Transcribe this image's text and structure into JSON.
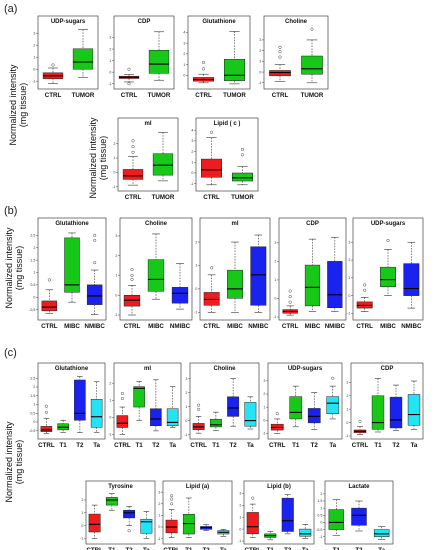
{
  "panel_labels": [
    "(a)",
    "(b)",
    "(c)"
  ],
  "y_title_line1": "Normalized intensity",
  "y_title_line2": "(mg tissue)",
  "colors": {
    "CTRL": "#ee1c1c",
    "TUMOR": "#18c818",
    "MIBC": "#18c818",
    "NMIBC": "#1a22f0",
    "T1": "#18c818",
    "T2": "#1a22f0",
    "Ta": "#22e4f4"
  },
  "chart_data": [
    {
      "type": "box",
      "panel": "a",
      "title": "UDP-sugars",
      "categories": [
        "CTRL",
        "TUMOR"
      ],
      "ylim": [
        -1.4,
        3.6
      ],
      "yticks": [
        -1,
        0,
        1,
        2,
        3
      ],
      "boxes": [
        {
          "min": -1.2,
          "q1": -0.8,
          "median": -0.55,
          "q3": -0.3,
          "max": 0.1,
          "outliers": [
            0.35
          ]
        },
        {
          "min": -0.7,
          "q1": 0.0,
          "median": 0.6,
          "q3": 1.7,
          "max": 3.3,
          "outliers": []
        }
      ]
    },
    {
      "type": "box",
      "panel": "a",
      "title": "CDP",
      "categories": [
        "CTRL",
        "TUMOR"
      ],
      "ylim": [
        -1.2,
        4.0
      ],
      "yticks": [
        -1,
        0,
        1,
        2,
        3
      ],
      "boxes": [
        {
          "min": -0.85,
          "q1": -0.55,
          "median": -0.45,
          "q3": -0.35,
          "max": -0.2,
          "outliers": [
            0.25,
            -1.0
          ]
        },
        {
          "min": -0.7,
          "q1": -0.1,
          "median": 0.7,
          "q3": 1.9,
          "max": 3.5,
          "outliers": []
        }
      ]
    },
    {
      "type": "box",
      "panel": "a",
      "title": "Glutathione",
      "categories": [
        "CTRL",
        "TUMOR"
      ],
      "ylim": [
        -1.0,
        4.6
      ],
      "yticks": [
        0,
        1,
        2,
        3,
        4
      ],
      "boxes": [
        {
          "min": -0.7,
          "q1": -0.55,
          "median": -0.4,
          "q3": -0.2,
          "max": 0.1,
          "outliers": [
            0.6,
            1.2
          ]
        },
        {
          "min": -0.8,
          "q1": -0.5,
          "median": 0.0,
          "q3": 1.5,
          "max": 4.1,
          "outliers": []
        }
      ]
    },
    {
      "type": "box",
      "panel": "a",
      "title": "Choline",
      "categories": [
        "CTRL",
        "TUMOR"
      ],
      "ylim": [
        -1.3,
        4.3
      ],
      "yticks": [
        -1,
        0,
        1,
        2,
        3
      ],
      "boxes": [
        {
          "min": -0.9,
          "q1": -0.35,
          "median": -0.05,
          "q3": 0.15,
          "max": 0.7,
          "outliers": [
            1.4,
            1.9,
            2.3
          ]
        },
        {
          "min": -1.0,
          "q1": -0.2,
          "median": 0.3,
          "q3": 1.5,
          "max": 3.0,
          "outliers": [
            4.0
          ]
        }
      ]
    },
    {
      "type": "box",
      "panel": "a",
      "title": "mI",
      "categories": [
        "CTRL",
        "TUMOR"
      ],
      "ylim": [
        -1.1,
        3.1
      ],
      "yticks": [
        -1,
        0,
        1,
        2
      ],
      "boxes": [
        {
          "min": -0.9,
          "q1": -0.5,
          "median": -0.25,
          "q3": 0.2,
          "max": 1.1,
          "outliers": [
            1.4,
            1.8,
            2.2
          ]
        },
        {
          "min": -0.6,
          "q1": -0.2,
          "median": 0.5,
          "q3": 1.3,
          "max": 2.8,
          "outliers": []
        }
      ]
    },
    {
      "type": "box",
      "panel": "a",
      "title": "Lipid ( c )",
      "categories": [
        "CTRL",
        "TUMOR"
      ],
      "ylim": [
        -1.4,
        4.2
      ],
      "yticks": [
        -1,
        0,
        1,
        2,
        3,
        4
      ],
      "boxes": [
        {
          "min": -1.1,
          "q1": -0.4,
          "median": 0.3,
          "q3": 1.3,
          "max": 3.3,
          "outliers": [
            3.8
          ]
        },
        {
          "min": -1.1,
          "q1": -0.75,
          "median": -0.45,
          "q3": 0.0,
          "max": 0.6,
          "outliers": [
            1.7,
            2.2
          ]
        }
      ]
    },
    {
      "type": "box",
      "panel": "b",
      "title": "Glutathione",
      "categories": [
        "CTRL",
        "MIBC",
        "NMIBC"
      ],
      "ylim": [
        -0.8,
        2.8
      ],
      "yticks": [
        -0.5,
        0.0,
        0.5,
        1.0,
        1.5,
        2.0,
        2.5
      ],
      "boxes": [
        {
          "min": -0.65,
          "q1": -0.55,
          "median": -0.4,
          "q3": -0.15,
          "max": 0.3,
          "outliers": [
            0.7
          ]
        },
        {
          "min": -0.2,
          "q1": 0.2,
          "median": 0.5,
          "q3": 2.4,
          "max": 2.6,
          "outliers": []
        },
        {
          "min": -0.7,
          "q1": -0.3,
          "median": 0.05,
          "q3": 0.5,
          "max": 1.1,
          "outliers": [
            2.3,
            2.5,
            1.4
          ]
        }
      ]
    },
    {
      "type": "box",
      "panel": "b",
      "title": "Choline",
      "categories": [
        "CTRL",
        "MIBC",
        "NMIBC"
      ],
      "ylim": [
        -1.1,
        3.4
      ],
      "yticks": [
        -1,
        0,
        1,
        2,
        3
      ],
      "boxes": [
        {
          "min": -1.0,
          "q1": -0.55,
          "median": -0.25,
          "q3": 0.0,
          "max": 0.5,
          "outliers": [
            1.3,
            1.0,
            0.8
          ]
        },
        {
          "min": -0.2,
          "q1": 0.2,
          "median": 0.8,
          "q3": 1.8,
          "max": 3.1,
          "outliers": []
        },
        {
          "min": -0.7,
          "q1": -0.4,
          "median": 0.1,
          "q3": 0.4,
          "max": 1.6,
          "outliers": []
        }
      ]
    },
    {
      "type": "box",
      "panel": "b",
      "title": "mI",
      "categories": [
        "CTRL",
        "MIBC",
        "NMIBC"
      ],
      "ylim": [
        -1.2,
        2.6
      ],
      "yticks": [
        -1,
        0,
        1,
        2
      ],
      "boxes": [
        {
          "min": -1.0,
          "q1": -0.7,
          "median": -0.45,
          "q3": -0.15,
          "max": 0.6,
          "outliers": [
            0.9
          ]
        },
        {
          "min": -1.0,
          "q1": -0.4,
          "median": 0.0,
          "q3": 0.8,
          "max": 2.0,
          "outliers": []
        },
        {
          "min": -1.0,
          "q1": -0.7,
          "median": 0.6,
          "q3": 1.8,
          "max": 2.3,
          "outliers": []
        }
      ]
    },
    {
      "type": "box",
      "panel": "b",
      "title": "CDP",
      "categories": [
        "CTRL",
        "MIBC",
        "NMIBC"
      ],
      "ylim": [
        -1.0,
        3.8
      ],
      "yticks": [
        -1,
        0,
        1,
        2,
        3
      ],
      "boxes": [
        {
          "min": -0.9,
          "q1": -0.8,
          "median": -0.7,
          "q3": -0.6,
          "max": -0.4,
          "outliers": [
            0.1,
            0.4,
            -0.2
          ]
        },
        {
          "min": -0.7,
          "q1": -0.4,
          "median": 0.6,
          "q3": 1.8,
          "max": 3.2,
          "outliers": []
        },
        {
          "min": -0.7,
          "q1": -0.5,
          "median": 0.2,
          "q3": 2.0,
          "max": 3.3,
          "outliers": []
        }
      ]
    },
    {
      "type": "box",
      "panel": "b",
      "title": "UDP-sugars",
      "categories": [
        "CTRL",
        "MIBC",
        "NMIBC"
      ],
      "ylim": [
        -1.2,
        3.8
      ],
      "yticks": [
        -1,
        0,
        1,
        2,
        3
      ],
      "boxes": [
        {
          "min": -0.9,
          "q1": -0.7,
          "median": -0.55,
          "q3": -0.35,
          "max": -0.1,
          "outliers": [
            0.3,
            0.6
          ]
        },
        {
          "min": 0.0,
          "q1": 0.5,
          "median": 0.9,
          "q3": 1.6,
          "max": 2.6,
          "outliers": [
            3.1
          ]
        },
        {
          "min": -0.7,
          "q1": 0.0,
          "median": 0.4,
          "q3": 1.8,
          "max": 3.0,
          "outliers": []
        }
      ]
    },
    {
      "type": "box",
      "panel": "c",
      "title": "Glutathione",
      "categories": [
        "CTRL",
        "T1",
        "T2",
        "Ta"
      ],
      "ylim": [
        -0.8,
        2.8
      ],
      "yticks": [
        -0.5,
        0.0,
        0.5,
        1.0,
        1.5,
        2.0,
        2.5
      ],
      "boxes": [
        {
          "min": -0.65,
          "q1": -0.55,
          "median": -0.45,
          "q3": -0.25,
          "max": 0.2,
          "outliers": [
            0.55,
            0.9
          ]
        },
        {
          "min": -0.6,
          "q1": -0.45,
          "median": -0.3,
          "q3": -0.1,
          "max": 0.1,
          "outliers": []
        },
        {
          "min": -0.6,
          "q1": 0.1,
          "median": 0.5,
          "q3": 2.4,
          "max": 2.6,
          "outliers": []
        },
        {
          "min": -0.6,
          "q1": -0.3,
          "median": 0.3,
          "q3": 1.3,
          "max": 2.3,
          "outliers": []
        }
      ]
    },
    {
      "type": "box",
      "panel": "c",
      "title": "mI",
      "categories": [
        "CTRL",
        "T1",
        "T2",
        "Ta"
      ],
      "ylim": [
        -1.1,
        2.6
      ],
      "yticks": [
        -1,
        0,
        1,
        2
      ],
      "boxes": [
        {
          "min": -1.0,
          "q1": -0.6,
          "median": -0.35,
          "q3": 0.1,
          "max": 0.6,
          "outliers": [
            1.1,
            1.4
          ]
        },
        {
          "min": -0.2,
          "q1": 0.6,
          "median": 1.7,
          "q3": 1.8,
          "max": 2.1,
          "outliers": []
        },
        {
          "min": -0.8,
          "q1": -0.5,
          "median": -0.1,
          "q3": 0.5,
          "max": 2.2,
          "outliers": []
        },
        {
          "min": -0.6,
          "q1": -0.5,
          "median": -0.3,
          "q3": 0.5,
          "max": 1.8,
          "outliers": []
        }
      ]
    },
    {
      "type": "box",
      "panel": "c",
      "title": "Choline",
      "categories": [
        "CTRL",
        "T1",
        "T2",
        "Ta"
      ],
      "ylim": [
        -1.1,
        3.4
      ],
      "yticks": [
        -1,
        0,
        1,
        2,
        3
      ],
      "boxes": [
        {
          "min": -0.9,
          "q1": -0.65,
          "median": -0.45,
          "q3": -0.2,
          "max": 0.3,
          "outliers": [
            0.8,
            1.1
          ]
        },
        {
          "min": -0.7,
          "q1": -0.45,
          "median": -0.3,
          "q3": 0.1,
          "max": 0.6,
          "outliers": []
        },
        {
          "min": -0.4,
          "q1": 0.3,
          "median": 0.9,
          "q3": 1.7,
          "max": 3.0,
          "outliers": []
        },
        {
          "min": -0.6,
          "q1": -0.4,
          "median": 0.0,
          "q3": 1.3,
          "max": 1.7,
          "outliers": []
        }
      ]
    },
    {
      "type": "box",
      "panel": "c",
      "title": "UDP-sugars",
      "categories": [
        "CTRL",
        "T1",
        "T2",
        "Ta"
      ],
      "ylim": [
        -1.2,
        3.6
      ],
      "yticks": [
        -1,
        0,
        1,
        2,
        3
      ],
      "boxes": [
        {
          "min": -1.0,
          "q1": -0.75,
          "median": -0.55,
          "q3": -0.3,
          "max": 0.1,
          "outliers": [
            0.5
          ]
        },
        {
          "min": -0.5,
          "q1": 0.1,
          "median": 0.6,
          "q3": 1.8,
          "max": 2.6,
          "outliers": []
        },
        {
          "min": -0.7,
          "q1": -0.2,
          "median": 0.3,
          "q3": 0.9,
          "max": 2.1,
          "outliers": []
        },
        {
          "min": 0.1,
          "q1": 0.5,
          "median": 1.3,
          "q3": 1.8,
          "max": 2.6,
          "outliers": [
            3.2
          ]
        }
      ]
    },
    {
      "type": "box",
      "panel": "c",
      "title": "CDP",
      "categories": [
        "CTRL",
        "T1",
        "T2",
        "Ta"
      ],
      "ylim": [
        -1.0,
        3.7
      ],
      "yticks": [
        -1,
        0,
        1,
        2,
        3
      ],
      "boxes": [
        {
          "min": -0.9,
          "q1": -0.75,
          "median": -0.65,
          "q3": -0.55,
          "max": -0.3,
          "outliers": [
            0.1
          ]
        },
        {
          "min": -0.7,
          "q1": -0.5,
          "median": 0.0,
          "q3": 2.0,
          "max": 3.3,
          "outliers": []
        },
        {
          "min": -0.6,
          "q1": -0.4,
          "median": 0.2,
          "q3": 1.9,
          "max": 2.8,
          "outliers": []
        },
        {
          "min": -0.5,
          "q1": -0.2,
          "median": 0.6,
          "q3": 2.1,
          "max": 3.1,
          "outliers": []
        }
      ]
    },
    {
      "type": "box",
      "panel": "c",
      "title": "Tyrosine",
      "categories": [
        "CTRL",
        "T1",
        "T2",
        "Ta"
      ],
      "ylim": [
        -1.2,
        2.7
      ],
      "yticks": [
        -1,
        0,
        1,
        2
      ],
      "boxes": [
        {
          "min": -1.0,
          "q1": -0.5,
          "median": 0.1,
          "q3": 0.9,
          "max": 1.6,
          "outliers": []
        },
        {
          "min": 1.2,
          "q1": 1.6,
          "median": 2.0,
          "q3": 2.2,
          "max": 2.5,
          "outliers": []
        },
        {
          "min": 0.0,
          "q1": 0.6,
          "median": 1.0,
          "q3": 1.2,
          "max": 1.5,
          "outliers": [
            -0.4
          ]
        },
        {
          "min": -1.0,
          "q1": -0.6,
          "median": 0.3,
          "q3": 0.5,
          "max": 1.1,
          "outliers": []
        }
      ]
    },
    {
      "type": "box",
      "panel": "c",
      "title": "Lipid (a)",
      "categories": [
        "CTRL",
        "T1",
        "T2",
        "Ta"
      ],
      "ylim": [
        -1.2,
        3.1
      ],
      "yticks": [
        -1,
        0,
        1,
        2,
        3
      ],
      "boxes": [
        {
          "min": -0.9,
          "q1": -0.5,
          "median": 0.0,
          "q3": 0.6,
          "max": 1.5,
          "outliers": [
            2.0,
            2.4,
            2.7
          ]
        },
        {
          "min": -0.9,
          "q1": -0.6,
          "median": 0.3,
          "q3": 1.1,
          "max": 2.5,
          "outliers": []
        },
        {
          "min": -0.3,
          "q1": -0.2,
          "median": -0.05,
          "q3": 0.05,
          "max": 0.2,
          "outliers": []
        },
        {
          "min": -0.8,
          "q1": -0.6,
          "median": -0.45,
          "q3": -0.3,
          "max": -0.2,
          "outliers": []
        }
      ]
    },
    {
      "type": "box",
      "panel": "c",
      "title": "Lipid (b)",
      "categories": [
        "CTRL",
        "T1",
        "T2",
        "Ta"
      ],
      "ylim": [
        -1.0,
        3.2
      ],
      "yticks": [
        -1,
        0,
        1,
        2,
        3
      ],
      "boxes": [
        {
          "min": -0.7,
          "q1": -0.4,
          "median": 0.2,
          "q3": 1.4,
          "max": 2.1,
          "outliers": [
            2.6
          ]
        },
        {
          "min": -0.9,
          "q1": -0.7,
          "median": -0.55,
          "q3": -0.4,
          "max": -0.2,
          "outliers": []
        },
        {
          "min": -0.4,
          "q1": -0.2,
          "median": 0.7,
          "q3": 2.6,
          "max": 2.9,
          "outliers": []
        },
        {
          "min": -0.8,
          "q1": -0.6,
          "median": -0.4,
          "q3": 0.0,
          "max": 0.4,
          "outliers": []
        }
      ]
    },
    {
      "type": "box",
      "panel": "c",
      "title": "Lactate",
      "categories": [
        "T1",
        "T2",
        "Ta"
      ],
      "ylim": [
        -1.3,
        2.2
      ],
      "yticks": [
        -1.0,
        -0.5,
        0.0,
        0.5,
        1.0,
        1.5,
        2.0
      ],
      "boxes": [
        {
          "min": -0.9,
          "q1": -0.5,
          "median": 0.0,
          "q3": 0.9,
          "max": 1.6,
          "outliers": []
        },
        {
          "min": -0.6,
          "q1": -0.2,
          "median": 0.5,
          "q3": 1.0,
          "max": 1.5,
          "outliers": []
        },
        {
          "min": -1.2,
          "q1": -1.0,
          "median": -0.8,
          "q3": -0.5,
          "max": -0.3,
          "outliers": []
        }
      ]
    }
  ]
}
